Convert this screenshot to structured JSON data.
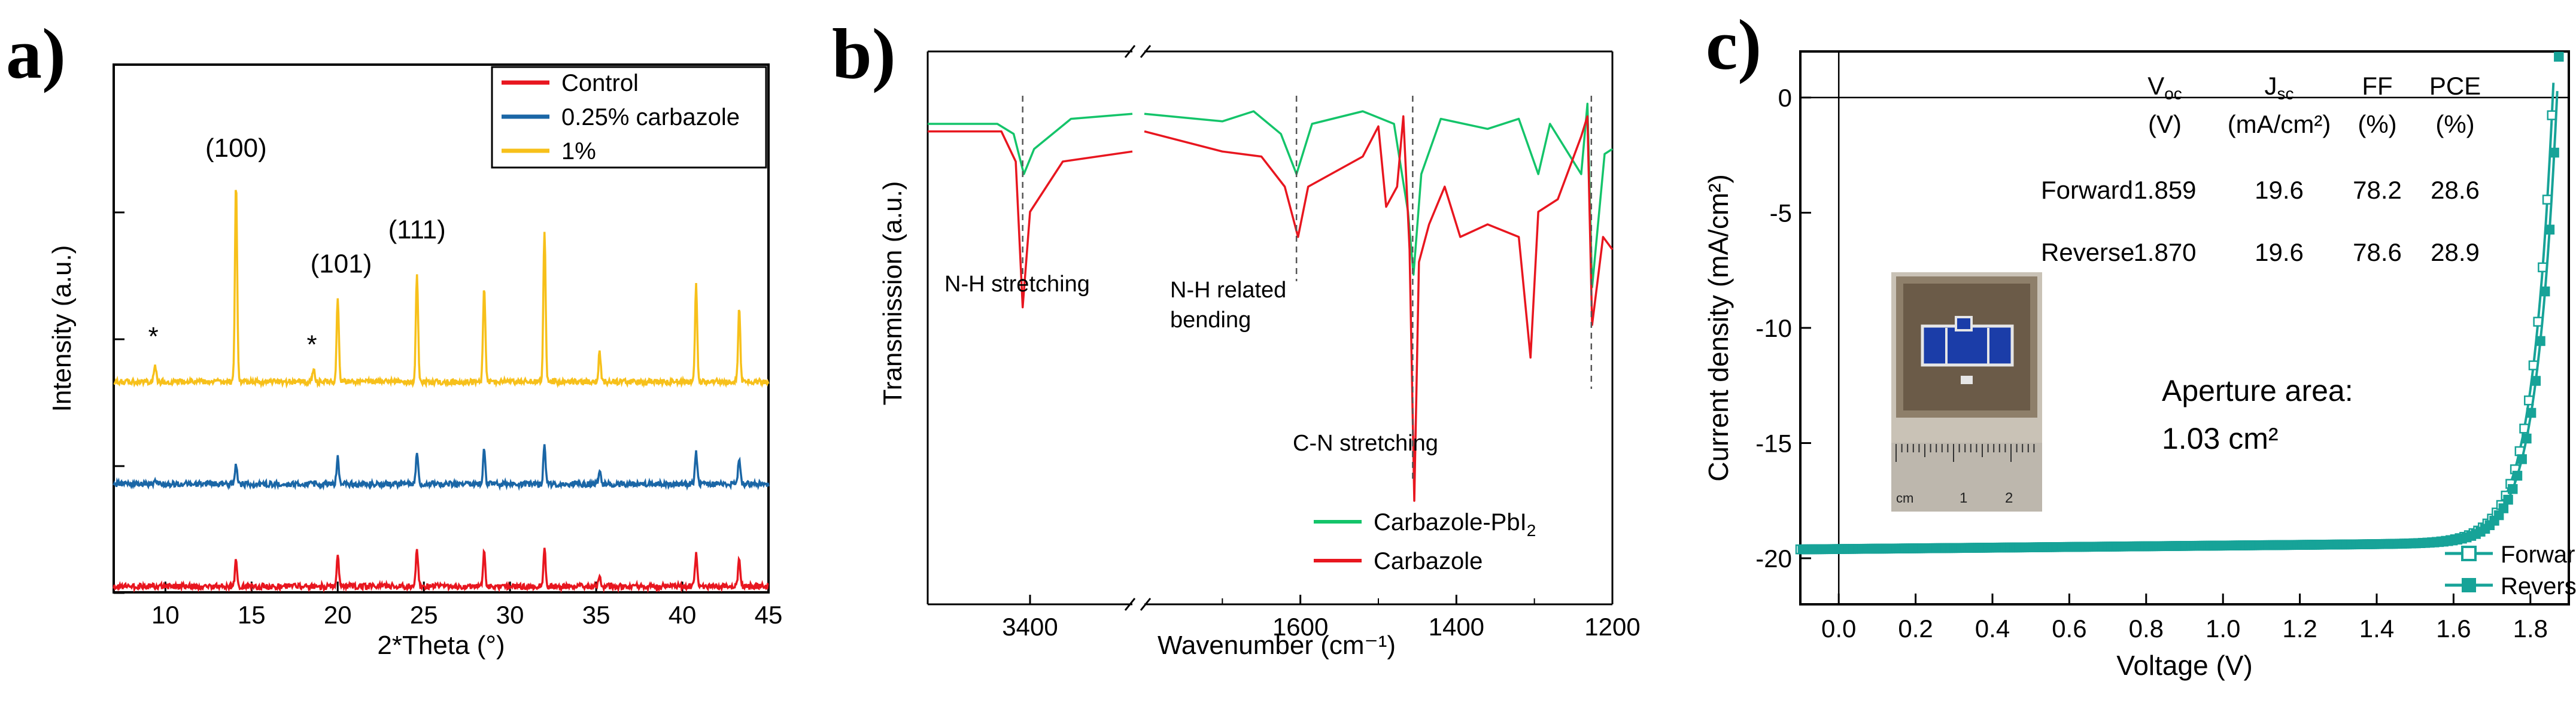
{
  "colors": {
    "control": "#e8161f",
    "carbazole025": "#1a66a6",
    "one_percent": "#f7c01a",
    "ftir_green": "#14c46a",
    "ftir_red": "#e8161f",
    "jv": "#17a398",
    "axis": "#000000",
    "dash": "#555555"
  },
  "chart_data": [
    {
      "panel_label": "a)",
      "type": "line",
      "title": "",
      "xlabel": "2*Theta (°)",
      "ylabel": "Intensity (a.u.)",
      "xlim": [
        7,
        45
      ],
      "xticks": [
        10,
        15,
        20,
        25,
        30,
        35,
        40,
        45
      ],
      "xtick_labels": [
        "10",
        "15",
        "20",
        "25",
        "30",
        "35",
        "40",
        "45"
      ],
      "y_tick_count": 4,
      "legend": {
        "placement": "top-right",
        "entries": [
          "Control",
          "0.25% carbazole",
          "1%"
        ]
      },
      "series": [
        {
          "name": "Control",
          "offset": 0.0,
          "peaks": [
            {
              "x": 14.1,
              "h": 0.24
            },
            {
              "x": 20.0,
              "h": 0.28
            },
            {
              "x": 24.6,
              "h": 0.32
            },
            {
              "x": 28.5,
              "h": 0.3
            },
            {
              "x": 32.0,
              "h": 0.34
            },
            {
              "x": 35.2,
              "h": 0.1
            },
            {
              "x": 40.8,
              "h": 0.28
            },
            {
              "x": 43.3,
              "h": 0.23
            }
          ]
        },
        {
          "name": "0.25% carbazole",
          "offset": 0.9,
          "peaks": [
            {
              "x": 9.4,
              "h": 0.03
            },
            {
              "x": 14.1,
              "h": 0.18
            },
            {
              "x": 20.0,
              "h": 0.24
            },
            {
              "x": 24.6,
              "h": 0.28
            },
            {
              "x": 28.5,
              "h": 0.3
            },
            {
              "x": 32.0,
              "h": 0.35
            },
            {
              "x": 35.2,
              "h": 0.12
            },
            {
              "x": 40.8,
              "h": 0.28
            },
            {
              "x": 43.3,
              "h": 0.24
            }
          ]
        },
        {
          "name": "1%",
          "offset": 1.8,
          "peaks": [
            {
              "x": 9.4,
              "h": 0.16
            },
            {
              "x": 14.1,
              "h": 1.76
            },
            {
              "x": 18.6,
              "h": 0.1
            },
            {
              "x": 20.0,
              "h": 0.72
            },
            {
              "x": 24.6,
              "h": 0.96
            },
            {
              "x": 28.5,
              "h": 0.84
            },
            {
              "x": 32.0,
              "h": 1.34
            },
            {
              "x": 35.2,
              "h": 0.26
            },
            {
              "x": 40.8,
              "h": 0.86
            },
            {
              "x": 43.3,
              "h": 0.64
            }
          ]
        }
      ],
      "annotations": [
        {
          "text": "(100)",
          "x": 14.1,
          "y": 3.78
        },
        {
          "text": "(101)",
          "x": 20.2,
          "y": 2.76
        },
        {
          "text": "(111)",
          "x": 24.6,
          "y": 3.06
        },
        {
          "text": "*",
          "x": 9.3,
          "y": 2.12
        },
        {
          "text": "*",
          "x": 18.5,
          "y": 2.05
        }
      ]
    },
    {
      "panel_label": "b)",
      "type": "line",
      "title": "",
      "xlabel": "Wavenumber (cm⁻¹)",
      "ylabel": "Transmission (a.u.)",
      "axis_break": true,
      "segments": [
        {
          "xlim": [
            3650,
            3150
          ],
          "xticks": [
            3400
          ]
        },
        {
          "xlim": [
            1800,
            1200
          ],
          "xticks": [
            1600,
            1400,
            1200
          ]
        }
      ],
      "legend": {
        "placement": "bottom-right",
        "entries": [
          "Carbazole-PbI2",
          "Carbazole"
        ]
      },
      "series": [
        {
          "name": "Carbazole-PbI2",
          "points_left": [
            [
              3650,
              0.1
            ],
            [
              3480,
              0.1
            ],
            [
              3440,
              0.14
            ],
            [
              3415,
              0.3
            ],
            [
              3390,
              0.2
            ],
            [
              3300,
              0.08
            ],
            [
              3150,
              0.06
            ]
          ],
          "points_right": [
            [
              1800,
              0.06
            ],
            [
              1700,
              0.09
            ],
            [
              1660,
              0.05
            ],
            [
              1625,
              0.14
            ],
            [
              1605,
              0.3
            ],
            [
              1585,
              0.1
            ],
            [
              1520,
              0.05
            ],
            [
              1480,
              0.1
            ],
            [
              1462,
              0.45
            ],
            [
              1455,
              0.7
            ],
            [
              1445,
              0.3
            ],
            [
              1420,
              0.08
            ],
            [
              1360,
              0.12
            ],
            [
              1320,
              0.08
            ],
            [
              1295,
              0.3
            ],
            [
              1280,
              0.1
            ],
            [
              1240,
              0.3
            ],
            [
              1232,
              0.02
            ],
            [
              1226,
              0.75
            ],
            [
              1210,
              0.22
            ],
            [
              1200,
              0.2
            ]
          ]
        },
        {
          "name": "Carbazole",
          "points_left": [
            [
              3650,
              0.08
            ],
            [
              3470,
              0.08
            ],
            [
              3435,
              0.2
            ],
            [
              3418,
              0.78
            ],
            [
              3400,
              0.4
            ],
            [
              3320,
              0.2
            ],
            [
              3150,
              0.16
            ]
          ],
          "points_right": [
            [
              1800,
              0.08
            ],
            [
              1700,
              0.16
            ],
            [
              1650,
              0.18
            ],
            [
              1620,
              0.3
            ],
            [
              1603,
              0.5
            ],
            [
              1590,
              0.3
            ],
            [
              1520,
              0.18
            ],
            [
              1500,
              0.06
            ],
            [
              1490,
              0.38
            ],
            [
              1476,
              0.3
            ],
            [
              1468,
              0.02
            ],
            [
              1460,
              0.55
            ],
            [
              1454,
              1.55
            ],
            [
              1448,
              0.6
            ],
            [
              1435,
              0.45
            ],
            [
              1415,
              0.3
            ],
            [
              1395,
              0.5
            ],
            [
              1360,
              0.45
            ],
            [
              1320,
              0.5
            ],
            [
              1305,
              0.98
            ],
            [
              1295,
              0.4
            ],
            [
              1270,
              0.35
            ],
            [
              1240,
              0.1
            ],
            [
              1232,
              0.02
            ],
            [
              1226,
              0.85
            ],
            [
              1212,
              0.5
            ],
            [
              1200,
              0.55
            ]
          ]
        }
      ],
      "annotations": [
        {
          "text": "N-H stretching",
          "x": 3425
        },
        {
          "text": "N-H related",
          "x": 1605
        },
        {
          "text": "bending",
          "x": 1605
        },
        {
          "text": "C-N stretching",
          "x": 1455
        }
      ],
      "dashed_markers": [
        3418,
        1605,
        1456,
        1227
      ]
    },
    {
      "panel_label": "c)",
      "type": "line",
      "title": "",
      "xlabel": "Voltage (V)",
      "ylabel": "Current density (mA/cm²)",
      "xlim": [
        -0.1,
        1.9
      ],
      "ylim": [
        -22,
        2
      ],
      "xticks": [
        0.0,
        0.2,
        0.4,
        0.6,
        0.8,
        1.0,
        1.2,
        1.4,
        1.6,
        1.8
      ],
      "xtick_labels": [
        "0.0",
        "0.2",
        "0.4",
        "0.6",
        "0.8",
        "1.0",
        "1.2",
        "1.4",
        "1.6",
        "1.8"
      ],
      "yticks": [
        0,
        -5,
        -10,
        -15,
        -20
      ],
      "ytick_labels": [
        "0",
        "-5",
        "-10",
        "-15",
        "-20"
      ],
      "legend": {
        "placement": "bottom-right",
        "entries": [
          "Forward",
          "Reverse"
        ]
      },
      "series": [
        {
          "name": "Forward",
          "marker": "open-square",
          "voc": 1.859,
          "jsc": 19.6
        },
        {
          "name": "Reverse",
          "marker": "filled-square",
          "voc": 1.87,
          "jsc": 19.6
        }
      ],
      "table": {
        "headers": [
          "V",
          "J",
          "FF",
          "PCE"
        ],
        "header_subs": [
          "oc",
          "sc",
          "",
          ""
        ],
        "units": [
          "(V)",
          "(mA/cm²)",
          "(%)",
          "(%)"
        ],
        "rows": [
          {
            "label": "Forward",
            "values": [
              "1.859",
              "19.6",
              "78.2",
              "28.6"
            ]
          },
          {
            "label": "Reverse",
            "values": [
              "1.870",
              "19.6",
              "78.6",
              "28.9"
            ]
          }
        ]
      },
      "annotations": [
        {
          "text": "Aperture area:"
        },
        {
          "text": "1.03 cm²"
        }
      ],
      "inset_ruler_labels": [
        "cm",
        "1",
        "2"
      ]
    }
  ]
}
